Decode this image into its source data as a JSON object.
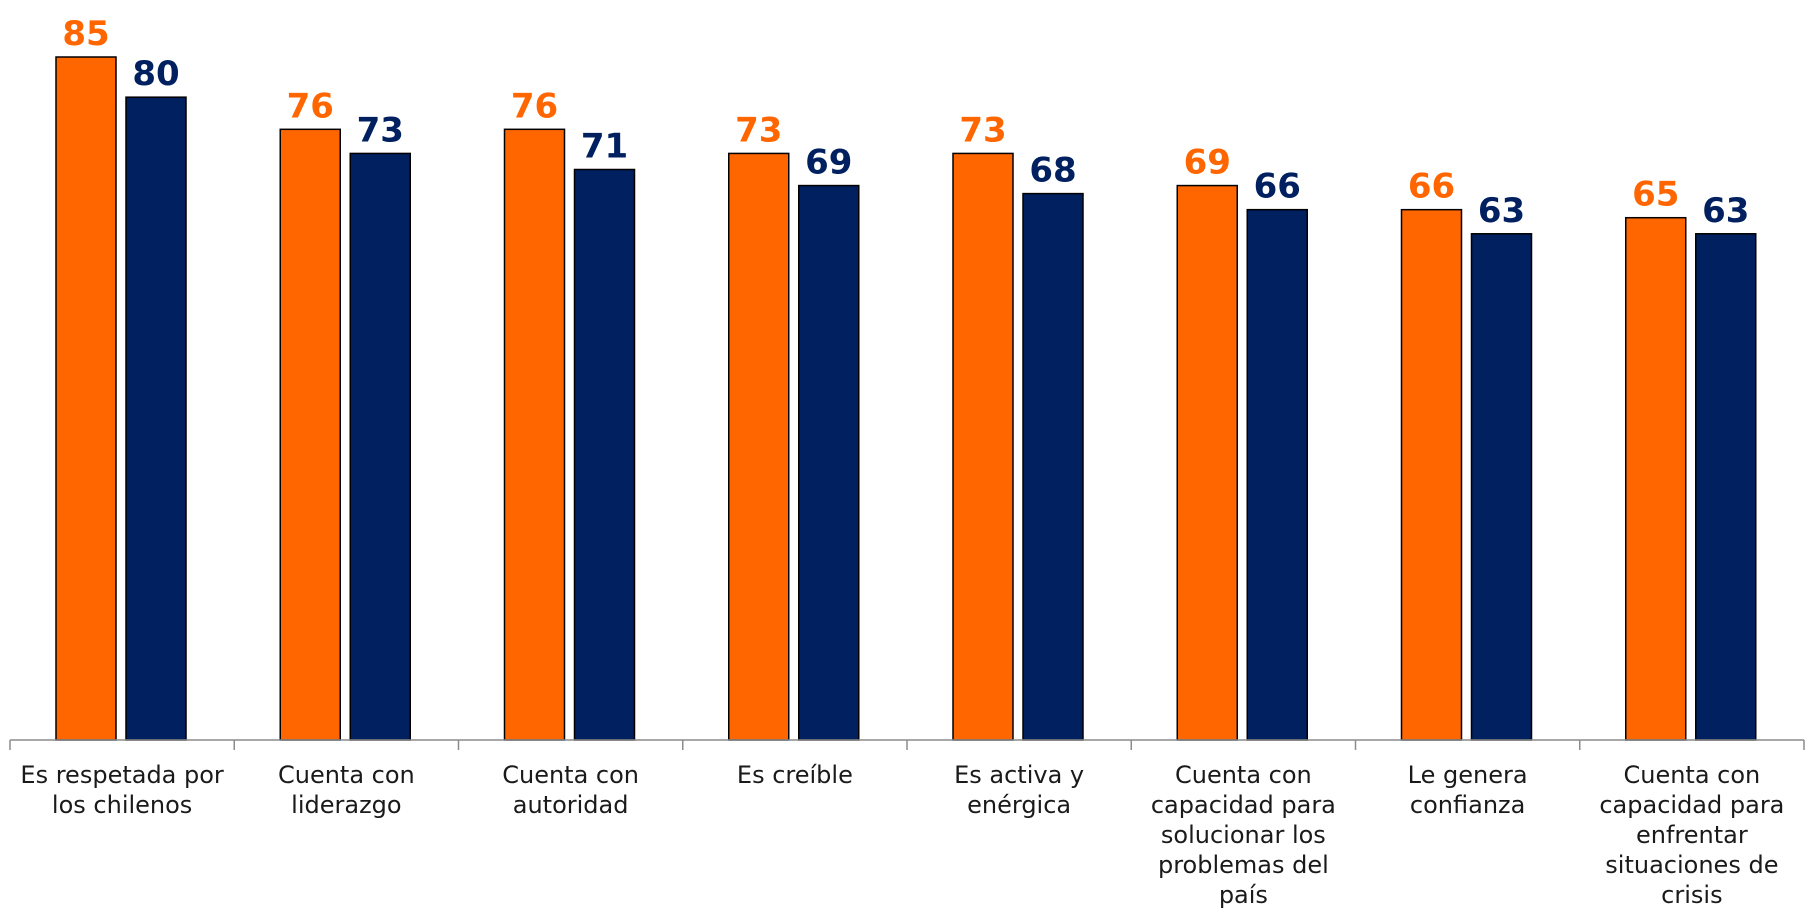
{
  "chart_data": {
    "type": "bar",
    "title": "",
    "xlabel": "",
    "ylabel": "",
    "ylim": [
      0,
      85
    ],
    "grid": false,
    "legend": "none",
    "categories": [
      [
        "Es respetada por",
        "los chilenos"
      ],
      [
        "Cuenta con",
        "liderazgo"
      ],
      [
        "Cuenta con",
        "autoridad"
      ],
      [
        "Es creíble"
      ],
      [
        "Es activa y",
        "enérgica"
      ],
      [
        "Cuenta con",
        "capacidad para",
        "solucionar los",
        "problemas del",
        "país"
      ],
      [
        "Le genera",
        "confianza"
      ],
      [
        "Cuenta con",
        "capacidad para",
        "enfrentar",
        "situaciones de",
        "crisis"
      ]
    ],
    "series": [
      {
        "color": "#ff6600",
        "values": [
          85,
          76,
          76,
          73,
          73,
          69,
          66,
          65
        ]
      },
      {
        "color": "#002060",
        "values": [
          80,
          73,
          71,
          69,
          68,
          66,
          63,
          63
        ]
      }
    ]
  }
}
